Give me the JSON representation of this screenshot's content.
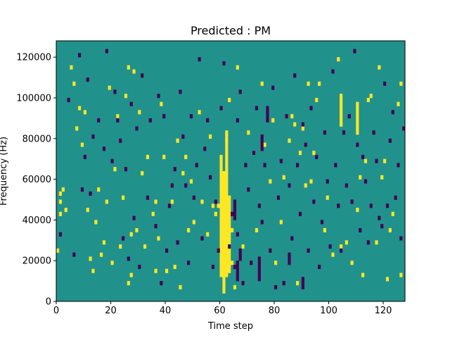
{
  "chart_data": {
    "type": "heatmap",
    "title": "Predicted : PM",
    "xlabel": "Time step",
    "ylabel": "Frequency (Hz)",
    "xlim": [
      0,
      128
    ],
    "ylim": [
      0,
      128000
    ],
    "x_ticks": [
      0,
      20,
      40,
      60,
      80,
      100,
      120
    ],
    "y_ticks": [
      0,
      20000,
      40000,
      60000,
      80000,
      100000,
      120000
    ],
    "y_tick_labels": [
      "0",
      "20000",
      "40000",
      "60000",
      "80000",
      "100000",
      "120000"
    ],
    "grid": false,
    "colormap": "viridis",
    "colors": {
      "background": "#21918c",
      "low": "#440154",
      "high": "#fde725"
    },
    "n_time_steps": 128,
    "n_freq_bins": 64,
    "freq_bin_hz": 2000,
    "high_cells": [
      [
        0,
        12
      ],
      [
        1,
        26
      ],
      [
        1,
        24
      ],
      [
        1,
        21
      ],
      [
        2,
        27
      ],
      [
        3,
        22
      ],
      [
        5,
        57
      ],
      [
        6,
        53
      ],
      [
        7,
        42
      ],
      [
        8,
        47
      ],
      [
        9,
        38
      ],
      [
        10,
        46
      ],
      [
        11,
        22
      ],
      [
        12,
        10
      ],
      [
        13,
        7
      ],
      [
        14,
        19
      ],
      [
        15,
        27
      ],
      [
        16,
        11
      ],
      [
        17,
        14
      ],
      [
        18,
        24
      ],
      [
        19,
        52
      ],
      [
        20,
        9
      ],
      [
        21,
        32
      ],
      [
        22,
        45
      ],
      [
        23,
        13
      ],
      [
        24,
        25
      ],
      [
        25,
        50
      ],
      [
        26,
        57
      ],
      [
        26,
        4
      ],
      [
        27,
        6
      ],
      [
        27,
        16
      ],
      [
        28,
        56
      ],
      [
        29,
        17
      ],
      [
        30,
        46
      ],
      [
        31,
        31
      ],
      [
        32,
        13
      ],
      [
        33,
        35
      ],
      [
        35,
        21
      ],
      [
        36,
        24
      ],
      [
        36,
        7
      ],
      [
        37,
        15
      ],
      [
        38,
        48
      ],
      [
        39,
        35
      ],
      [
        40,
        7
      ],
      [
        42,
        24
      ],
      [
        43,
        8
      ],
      [
        44,
        39
      ],
      [
        45,
        3
      ],
      [
        46,
        31
      ],
      [
        47,
        35
      ],
      [
        48,
        17
      ],
      [
        49,
        29
      ],
      [
        50,
        19
      ],
      [
        52,
        46
      ],
      [
        53,
        24
      ],
      [
        55,
        16
      ],
      [
        56,
        40
      ],
      [
        57,
        23
      ],
      [
        58,
        21
      ],
      [
        59,
        23
      ],
      [
        60,
        19
      ],
      [
        61,
        31
      ],
      [
        62,
        39
      ],
      [
        63,
        49
      ],
      [
        64,
        9
      ],
      [
        64,
        17
      ],
      [
        65,
        3
      ],
      [
        66,
        57
      ],
      [
        68,
        13
      ],
      [
        70,
        41
      ],
      [
        72,
        36
      ],
      [
        73,
        17
      ],
      [
        75,
        53
      ],
      [
        76,
        38
      ],
      [
        78,
        29
      ],
      [
        79,
        44
      ],
      [
        80,
        9
      ],
      [
        82,
        19
      ],
      [
        83,
        30
      ],
      [
        85,
        39
      ],
      [
        86,
        45
      ],
      [
        87,
        43
      ],
      [
        88,
        4
      ],
      [
        89,
        36
      ],
      [
        90,
        42
      ],
      [
        91,
        28
      ],
      [
        92,
        53
      ],
      [
        93,
        29
      ],
      [
        94,
        36
      ],
      [
        95,
        49
      ],
      [
        96,
        53
      ],
      [
        98,
        17
      ],
      [
        99,
        25
      ],
      [
        101,
        11
      ],
      [
        103,
        59
      ],
      [
        104,
        43
      ],
      [
        104,
        13
      ],
      [
        106,
        14
      ],
      [
        108,
        9
      ],
      [
        110,
        22
      ],
      [
        111,
        30
      ],
      [
        112,
        6
      ],
      [
        113,
        34
      ],
      [
        114,
        49
      ],
      [
        115,
        50
      ],
      [
        117,
        14
      ],
      [
        118,
        57
      ],
      [
        119,
        30
      ],
      [
        120,
        34
      ],
      [
        121,
        5
      ],
      [
        122,
        17
      ],
      [
        123,
        21
      ],
      [
        125,
        48
      ],
      [
        126,
        53
      ],
      [
        126,
        6
      ]
    ],
    "high_columns": [
      {
        "x": 60,
        "from": 6,
        "to": 35
      },
      {
        "x": 61,
        "from": 2,
        "to": 31
      },
      {
        "x": 62,
        "from": 6,
        "to": 41
      },
      {
        "x": 63,
        "from": 7,
        "to": 25
      },
      {
        "x": 104,
        "from": 43,
        "to": 50
      },
      {
        "x": 110,
        "from": 41,
        "to": 48
      }
    ],
    "low_cells": [
      [
        1,
        16
      ],
      [
        4,
        49
      ],
      [
        6,
        11
      ],
      [
        8,
        60
      ],
      [
        9,
        27
      ],
      [
        10,
        35
      ],
      [
        11,
        54
      ],
      [
        12,
        26
      ],
      [
        13,
        40
      ],
      [
        15,
        44
      ],
      [
        17,
        37
      ],
      [
        18,
        61
      ],
      [
        20,
        34
      ],
      [
        21,
        51
      ],
      [
        22,
        44
      ],
      [
        23,
        39
      ],
      [
        24,
        15
      ],
      [
        25,
        32
      ],
      [
        26,
        10
      ],
      [
        27,
        48
      ],
      [
        28,
        20
      ],
      [
        29,
        42
      ],
      [
        30,
        8
      ],
      [
        31,
        55
      ],
      [
        33,
        25
      ],
      [
        34,
        44
      ],
      [
        36,
        18
      ],
      [
        37,
        50
      ],
      [
        38,
        4
      ],
      [
        39,
        45
      ],
      [
        40,
        12
      ],
      [
        41,
        23
      ],
      [
        42,
        28
      ],
      [
        43,
        32
      ],
      [
        44,
        14
      ],
      [
        45,
        51
      ],
      [
        46,
        40
      ],
      [
        47,
        28
      ],
      [
        48,
        9
      ],
      [
        49,
        45
      ],
      [
        50,
        25
      ],
      [
        51,
        33
      ],
      [
        52,
        59
      ],
      [
        53,
        15
      ],
      [
        54,
        37
      ],
      [
        55,
        44
      ],
      [
        56,
        30
      ],
      [
        57,
        8
      ],
      [
        58,
        24
      ],
      [
        59,
        12
      ],
      [
        60,
        47
      ],
      [
        61,
        58
      ],
      [
        63,
        13
      ],
      [
        64,
        21
      ],
      [
        65,
        8
      ],
      [
        66,
        44
      ],
      [
        66,
        16
      ],
      [
        67,
        51
      ],
      [
        68,
        4
      ],
      [
        69,
        33
      ],
      [
        70,
        27
      ],
      [
        71,
        9
      ],
      [
        72,
        36
      ],
      [
        73,
        47
      ],
      [
        74,
        23
      ],
      [
        75,
        19
      ],
      [
        76,
        33
      ],
      [
        77,
        44
      ],
      [
        78,
        12
      ],
      [
        79,
        52
      ],
      [
        80,
        3
      ],
      [
        81,
        25
      ],
      [
        82,
        34
      ],
      [
        83,
        4
      ],
      [
        84,
        45
      ],
      [
        85,
        28
      ],
      [
        86,
        15
      ],
      [
        87,
        55
      ],
      [
        88,
        33
      ],
      [
        89,
        21
      ],
      [
        90,
        43
      ],
      [
        91,
        38
      ],
      [
        92,
        12
      ],
      [
        93,
        47
      ],
      [
        94,
        24
      ],
      [
        95,
        35
      ],
      [
        96,
        8
      ],
      [
        97,
        19
      ],
      [
        98,
        41
      ],
      [
        99,
        29
      ],
      [
        100,
        13
      ],
      [
        101,
        56
      ],
      [
        102,
        33
      ],
      [
        103,
        23
      ],
      [
        104,
        12
      ],
      [
        105,
        41
      ],
      [
        106,
        28
      ],
      [
        107,
        45
      ],
      [
        108,
        24
      ],
      [
        109,
        61
      ],
      [
        110,
        38
      ],
      [
        111,
        17
      ],
      [
        112,
        35
      ],
      [
        113,
        29
      ],
      [
        114,
        14
      ],
      [
        115,
        23
      ],
      [
        116,
        41
      ],
      [
        117,
        34
      ],
      [
        118,
        20
      ],
      [
        119,
        18
      ],
      [
        120,
        53
      ],
      [
        121,
        23
      ],
      [
        122,
        39
      ],
      [
        123,
        46
      ],
      [
        124,
        25
      ],
      [
        125,
        33
      ],
      [
        126,
        15
      ],
      [
        127,
        42
      ]
    ],
    "low_blocks": [
      {
        "x": 65,
        "from": 20,
        "to": 24
      },
      {
        "x": 66,
        "from": 5,
        "to": 9
      },
      {
        "x": 67,
        "from": 10,
        "to": 12
      },
      {
        "x": 74,
        "from": 5,
        "to": 10
      },
      {
        "x": 75,
        "from": 37,
        "to": 40
      },
      {
        "x": 77,
        "from": 45,
        "to": 47
      },
      {
        "x": 90,
        "from": 3,
        "to": 5
      },
      {
        "x": 85,
        "from": 9,
        "to": 11
      }
    ]
  }
}
